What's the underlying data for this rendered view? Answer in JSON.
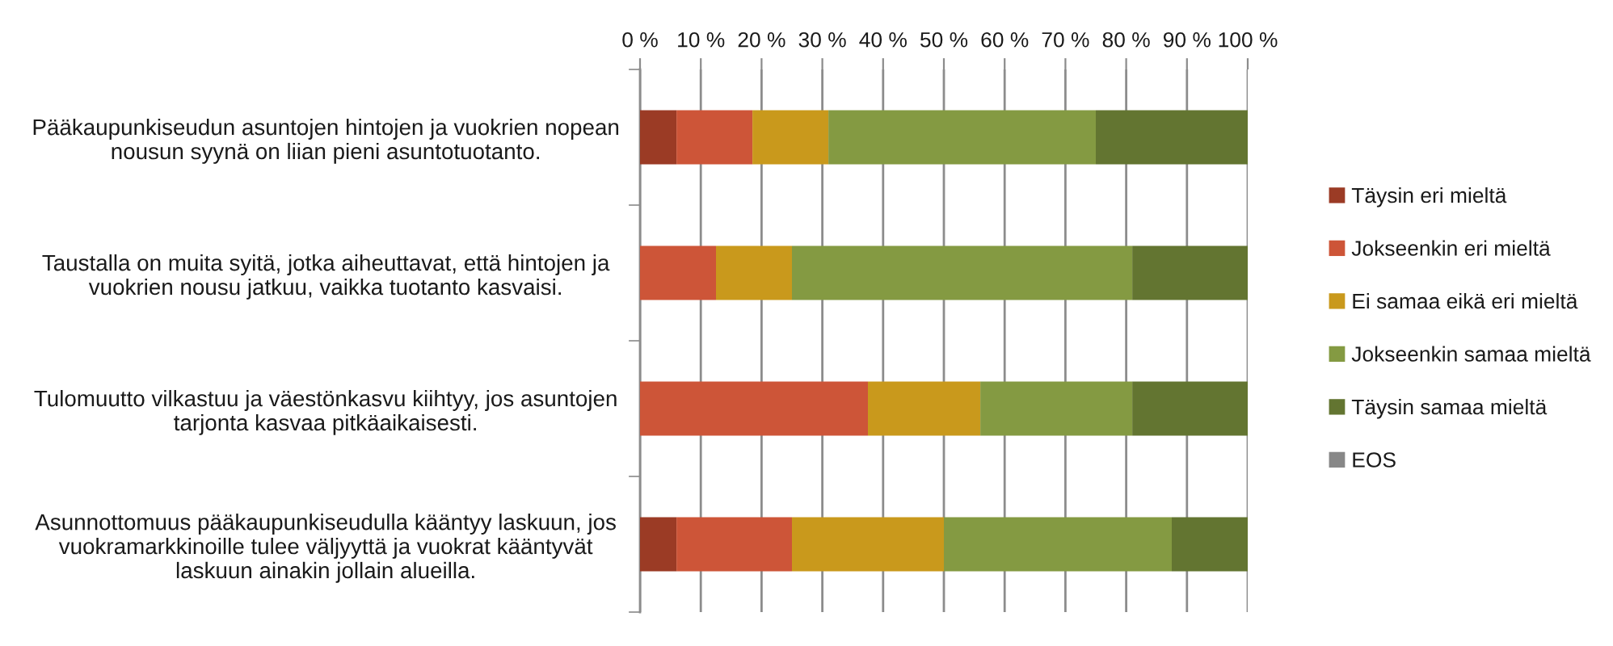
{
  "chart_data": {
    "type": "bar",
    "orientation": "horizontal",
    "stacked": true,
    "categories": [
      "Pääkaupunkiseudun asuntojen hintojen ja vuokrien nopean nousun syynä on liian pieni asuntotuotanto.",
      "Taustalla on muita syitä, jotka aiheuttavat, että hintojen ja vuokrien nousu jatkuu, vaikka tuotanto kasvaisi.",
      "Tulomuutto vilkastuu ja väestönkasvu kiihtyy, jos asuntojen tarjonta kasvaa pitkäaikaisesti.",
      "Asunnottomuus pääkaupunkiseudulla kääntyy laskuun, jos vuokramarkkinoille tulee väljyyttä ja vuokrat kääntyvät laskuun ainakin jollain alueilla."
    ],
    "series": [
      {
        "name": "Täysin eri mieltä",
        "color": "#9b3b25",
        "values": [
          6,
          0,
          0,
          6
        ]
      },
      {
        "name": "Jokseenkin eri mieltä",
        "color": "#cd5538",
        "values": [
          12.5,
          12.5,
          37.5,
          19
        ]
      },
      {
        "name": "Ei samaa eikä eri mieltä",
        "color": "#c9991c",
        "values": [
          12.5,
          12.5,
          18.5,
          25
        ]
      },
      {
        "name": "Jokseenkin samaa mieltä",
        "color": "#849a42",
        "values": [
          44,
          56,
          25,
          37.5
        ]
      },
      {
        "name": "Täysin samaa mieltä",
        "color": "#637531",
        "values": [
          25,
          19,
          19,
          12.5
        ]
      },
      {
        "name": "EOS",
        "color": "#878787",
        "values": [
          0,
          0,
          0,
          0
        ]
      }
    ],
    "xlim": [
      0,
      100
    ],
    "xticks": [
      {
        "value": 0,
        "label": "0 %"
      },
      {
        "value": 10,
        "label": "10 %"
      },
      {
        "value": 20,
        "label": "20 %"
      },
      {
        "value": 30,
        "label": "30 %"
      },
      {
        "value": 40,
        "label": "40 %"
      },
      {
        "value": 50,
        "label": "50 %"
      },
      {
        "value": 60,
        "label": "60 %"
      },
      {
        "value": 70,
        "label": "70 %"
      },
      {
        "value": 80,
        "label": "80 %"
      },
      {
        "value": 90,
        "label": "90 %"
      },
      {
        "value": 100,
        "label": "100 %"
      }
    ],
    "grid": "x",
    "legend": "right"
  }
}
